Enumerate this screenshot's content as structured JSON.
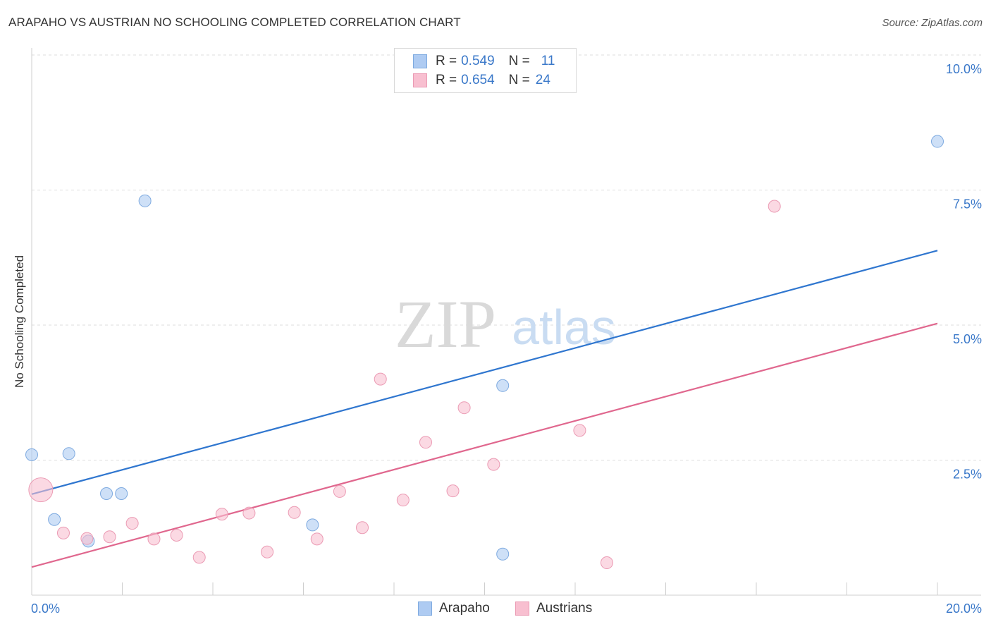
{
  "header": {
    "title": "ARAPAHO VS AUSTRIAN NO SCHOOLING COMPLETED CORRELATION CHART",
    "source": "Source: ZipAtlas.com"
  },
  "watermark": {
    "zip": "ZIP",
    "atlas": "atlas"
  },
  "legend": {
    "rows": [
      {
        "r_label": "R =",
        "r_value": "0.549",
        "n_label": "N =",
        "n_value": "11",
        "color": "#aecbf2"
      },
      {
        "r_label": "R =",
        "r_value": "0.654",
        "n_label": "N =",
        "n_value": "24",
        "color": "#f8bfd0"
      }
    ]
  },
  "bottom_legend": {
    "arapaho": "Arapaho",
    "austrians": "Austrians"
  },
  "chart_data": {
    "type": "scatter",
    "title": "ARAPAHO VS AUSTRIAN NO SCHOOLING COMPLETED CORRELATION CHART",
    "xlabel": "",
    "ylabel": "No Schooling Completed",
    "xlim": [
      0,
      20
    ],
    "ylim": [
      0,
      10
    ],
    "x_tick_labels": [
      "0.0%",
      "20.0%"
    ],
    "y_ticks": [
      {
        "value": 2.5,
        "label": "2.5%"
      },
      {
        "value": 5.0,
        "label": "5.0%"
      },
      {
        "value": 7.5,
        "label": "7.5%"
      },
      {
        "value": 10.0,
        "label": "10.0%"
      }
    ],
    "grid": true,
    "series": [
      {
        "name": "Arapaho",
        "color": "#aecbf2",
        "stroke": "#7eaae0",
        "line_color": "#2f76cf",
        "r": 0.549,
        "n": 11,
        "points": [
          {
            "x": 0.0,
            "y": 2.6
          },
          {
            "x": 0.82,
            "y": 2.62
          },
          {
            "x": 0.5,
            "y": 1.4
          },
          {
            "x": 1.25,
            "y": 1.0
          },
          {
            "x": 1.65,
            "y": 1.88
          },
          {
            "x": 1.98,
            "y": 1.88
          },
          {
            "x": 2.5,
            "y": 7.3
          },
          {
            "x": 6.2,
            "y": 1.3
          },
          {
            "x": 10.4,
            "y": 0.76
          },
          {
            "x": 10.4,
            "y": 3.88
          },
          {
            "x": 20.0,
            "y": 8.4
          }
        ],
        "trend": {
          "x0": 0.0,
          "y0": 1.87,
          "x1": 20.0,
          "y1": 6.38
        }
      },
      {
        "name": "Austrians",
        "color": "#f8bfd0",
        "stroke": "#eb9bb4",
        "line_color": "#e0678e",
        "r": 0.654,
        "n": 24,
        "points": [
          {
            "x": 0.2,
            "y": 1.95,
            "size": "large"
          },
          {
            "x": 0.7,
            "y": 1.15
          },
          {
            "x": 1.22,
            "y": 1.05
          },
          {
            "x": 1.72,
            "y": 1.08
          },
          {
            "x": 2.22,
            "y": 1.33
          },
          {
            "x": 2.7,
            "y": 1.04
          },
          {
            "x": 3.2,
            "y": 1.11
          },
          {
            "x": 3.7,
            "y": 0.7
          },
          {
            "x": 4.2,
            "y": 1.5
          },
          {
            "x": 4.8,
            "y": 1.52
          },
          {
            "x": 5.2,
            "y": 0.8
          },
          {
            "x": 5.8,
            "y": 1.53
          },
          {
            "x": 6.3,
            "y": 1.04
          },
          {
            "x": 6.8,
            "y": 1.92
          },
          {
            "x": 7.3,
            "y": 1.25
          },
          {
            "x": 7.7,
            "y": 4.0
          },
          {
            "x": 8.2,
            "y": 1.76
          },
          {
            "x": 8.7,
            "y": 2.83
          },
          {
            "x": 9.3,
            "y": 1.93
          },
          {
            "x": 9.55,
            "y": 3.47
          },
          {
            "x": 10.2,
            "y": 2.42
          },
          {
            "x": 12.1,
            "y": 3.05
          },
          {
            "x": 12.7,
            "y": 0.6
          },
          {
            "x": 16.4,
            "y": 7.2
          }
        ],
        "trend": {
          "x0": 0.0,
          "y0": 0.52,
          "x1": 20.0,
          "y1": 5.03
        }
      }
    ]
  }
}
